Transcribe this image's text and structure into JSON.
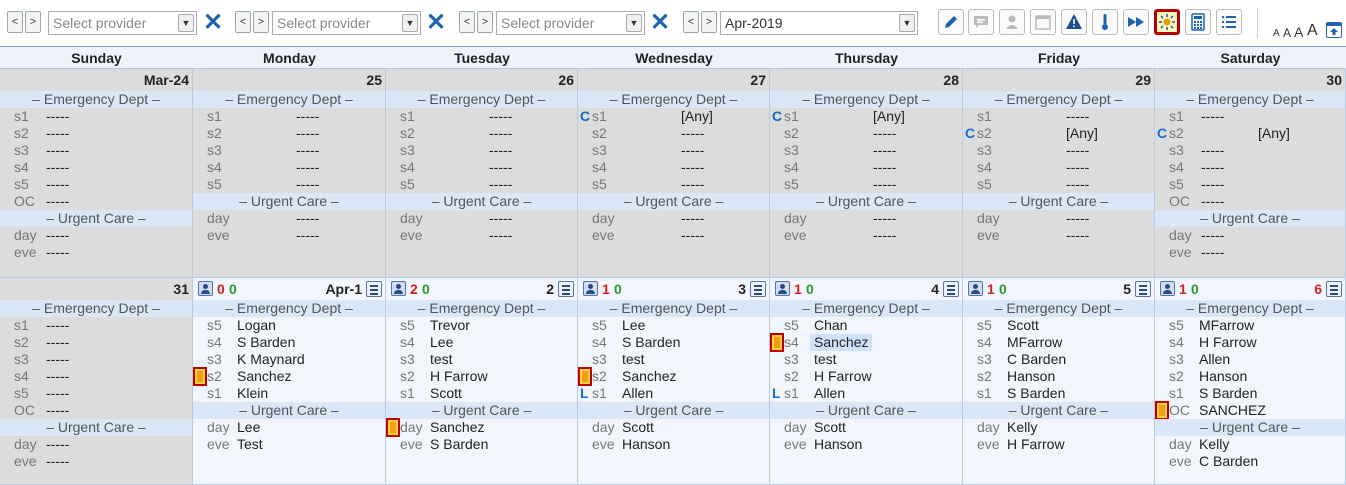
{
  "toolbar": {
    "providers": [
      {
        "placeholder": "Select provider"
      },
      {
        "placeholder": "Select provider"
      },
      {
        "placeholder": "Select provider"
      }
    ],
    "month": "Apr-2019",
    "prev": "<",
    "next": ">",
    "clear": "✕",
    "font_sizes": [
      "A",
      "A",
      "A",
      "A"
    ]
  },
  "days": [
    "Sunday",
    "Monday",
    "Tuesday",
    "Wednesday",
    "Thursday",
    "Friday",
    "Saturday"
  ],
  "sections": {
    "ed": "– Emergency Dept –",
    "uc": "– Urgent Care –"
  },
  "weeks": [
    [
      {
        "date": "Mar-24",
        "past": true,
        "ed": [
          [
            "",
            "s1",
            "-----"
          ],
          [
            "",
            "s2",
            "-----"
          ],
          [
            "",
            "s3",
            "-----"
          ],
          [
            "",
            "s4",
            "-----"
          ],
          [
            "",
            "s5",
            "-----"
          ],
          [
            "",
            "OC",
            "-----"
          ]
        ],
        "uc": [
          [
            "",
            "day",
            "-----"
          ],
          [
            "",
            "eve",
            "-----"
          ]
        ]
      },
      {
        "date": "25",
        "past": true,
        "ed": [
          [
            "",
            "s1",
            "-----"
          ],
          [
            "",
            "s2",
            "-----"
          ],
          [
            "",
            "s3",
            "-----"
          ],
          [
            "",
            "s4",
            "-----"
          ],
          [
            "",
            "s5",
            "-----"
          ]
        ],
        "uc": [
          [
            "",
            "day",
            "-----"
          ],
          [
            "",
            "eve",
            "-----"
          ]
        ]
      },
      {
        "date": "26",
        "past": true,
        "ed": [
          [
            "",
            "s1",
            "-----"
          ],
          [
            "",
            "s2",
            "-----"
          ],
          [
            "",
            "s3",
            "-----"
          ],
          [
            "",
            "s4",
            "-----"
          ],
          [
            "",
            "s5",
            "-----"
          ]
        ],
        "uc": [
          [
            "",
            "day",
            "-----"
          ],
          [
            "",
            "eve",
            "-----"
          ]
        ]
      },
      {
        "date": "27",
        "past": true,
        "ed": [
          [
            "C",
            "s1",
            "[Any]"
          ],
          [
            "",
            "s2",
            "-----"
          ],
          [
            "",
            "s3",
            "-----"
          ],
          [
            "",
            "s4",
            "-----"
          ],
          [
            "",
            "s5",
            "-----"
          ]
        ],
        "uc": [
          [
            "",
            "day",
            "-----"
          ],
          [
            "",
            "eve",
            "-----"
          ]
        ]
      },
      {
        "date": "28",
        "past": true,
        "ed": [
          [
            "C",
            "s1",
            "[Any]"
          ],
          [
            "",
            "s2",
            "-----"
          ],
          [
            "",
            "s3",
            "-----"
          ],
          [
            "",
            "s4",
            "-----"
          ],
          [
            "",
            "s5",
            "-----"
          ]
        ],
        "uc": [
          [
            "",
            "day",
            "-----"
          ],
          [
            "",
            "eve",
            "-----"
          ]
        ]
      },
      {
        "date": "29",
        "past": true,
        "ed": [
          [
            "",
            "s1",
            "-----"
          ],
          [
            "C",
            "s2",
            "[Any]"
          ],
          [
            "",
            "s3",
            "-----"
          ],
          [
            "",
            "s4",
            "-----"
          ],
          [
            "",
            "s5",
            "-----"
          ]
        ],
        "uc": [
          [
            "",
            "day",
            "-----"
          ],
          [
            "",
            "eve",
            "-----"
          ]
        ]
      },
      {
        "date": "30",
        "past": true,
        "ed": [
          [
            "",
            "s1",
            "-----"
          ],
          [
            "C",
            "s2",
            "[Any]"
          ],
          [
            "",
            "s3",
            "-----"
          ],
          [
            "",
            "s4",
            "-----"
          ],
          [
            "",
            "s5",
            "-----"
          ],
          [
            "",
            "OC",
            "-----"
          ]
        ],
        "uc": [
          [
            "",
            "day",
            "-----"
          ],
          [
            "",
            "eve",
            "-----"
          ]
        ]
      }
    ],
    [
      {
        "date": "31",
        "past": true,
        "ed": [
          [
            "",
            "s1",
            "-----"
          ],
          [
            "",
            "s2",
            "-----"
          ],
          [
            "",
            "s3",
            "-----"
          ],
          [
            "",
            "s4",
            "-----"
          ],
          [
            "",
            "s5",
            "-----"
          ],
          [
            "",
            "OC",
            "-----"
          ]
        ],
        "uc": [
          [
            "",
            "day",
            "-----"
          ],
          [
            "",
            "eve",
            "-----"
          ]
        ]
      },
      {
        "date": "Apr-1",
        "past": false,
        "counts": [
          "0",
          "0"
        ],
        "ed": [
          [
            "",
            "s5",
            "Logan"
          ],
          [
            "",
            "s4",
            "S Barden"
          ],
          [
            "",
            "s3",
            "K Maynard"
          ],
          [
            "F",
            "s2",
            "Sanchez"
          ],
          [
            "",
            "s1",
            "Klein"
          ]
        ],
        "uc": [
          [
            "",
            "day",
            "Lee"
          ],
          [
            "",
            "eve",
            "Test"
          ]
        ]
      },
      {
        "date": "2",
        "past": false,
        "counts": [
          "2",
          "0"
        ],
        "ed": [
          [
            "",
            "s5",
            "Trevor"
          ],
          [
            "",
            "s4",
            "Lee"
          ],
          [
            "",
            "s3",
            "test"
          ],
          [
            "",
            "s2",
            "H Farrow"
          ],
          [
            "",
            "s1",
            "Scott"
          ]
        ],
        "uc": [
          [
            "F",
            "day",
            "Sanchez"
          ],
          [
            "",
            "eve",
            "S Barden"
          ]
        ]
      },
      {
        "date": "3",
        "past": false,
        "counts": [
          "1",
          "0"
        ],
        "ed": [
          [
            "",
            "s5",
            "Lee"
          ],
          [
            "",
            "s4",
            "S Barden"
          ],
          [
            "",
            "s3",
            "test"
          ],
          [
            "F",
            "s2",
            "Sanchez"
          ],
          [
            "L",
            "s1",
            "Allen"
          ]
        ],
        "uc": [
          [
            "",
            "day",
            "Scott"
          ],
          [
            "",
            "eve",
            "Hanson"
          ]
        ]
      },
      {
        "date": "4",
        "past": false,
        "counts": [
          "1",
          "0"
        ],
        "ed": [
          [
            "",
            "s5",
            "Chan"
          ],
          [
            "FH",
            "s4",
            "Sanchez"
          ],
          [
            "",
            "s3",
            "test"
          ],
          [
            "",
            "s2",
            "H Farrow"
          ],
          [
            "L",
            "s1",
            "Allen"
          ]
        ],
        "uc": [
          [
            "",
            "day",
            "Scott"
          ],
          [
            "",
            "eve",
            "Hanson"
          ]
        ]
      },
      {
        "date": "5",
        "past": false,
        "counts": [
          "1",
          "0"
        ],
        "ed": [
          [
            "",
            "s5",
            "Scott"
          ],
          [
            "",
            "s4",
            "MFarrow"
          ],
          [
            "",
            "s3",
            "C Barden"
          ],
          [
            "",
            "s2",
            "Hanson"
          ],
          [
            "",
            "s1",
            "S Barden"
          ]
        ],
        "uc": [
          [
            "",
            "day",
            "Kelly"
          ],
          [
            "",
            "eve",
            "H Farrow"
          ]
        ]
      },
      {
        "date": "6",
        "past": false,
        "red": true,
        "counts": [
          "1",
          "0"
        ],
        "ed": [
          [
            "",
            "s5",
            "MFarrow"
          ],
          [
            "",
            "s4",
            "H Farrow"
          ],
          [
            "",
            "s3",
            "Allen"
          ],
          [
            "",
            "s2",
            "Hanson"
          ],
          [
            "",
            "s1",
            "S Barden"
          ],
          [
            "F",
            "OC",
            "SANCHEZ"
          ]
        ],
        "uc": [
          [
            "",
            "day",
            "Kelly"
          ],
          [
            "",
            "eve",
            "C Barden"
          ]
        ]
      }
    ]
  ],
  "colors": {
    "accent": "#1d63b0",
    "red": "#d42020",
    "green": "#2a9a2a",
    "flag": "#f0a018"
  }
}
